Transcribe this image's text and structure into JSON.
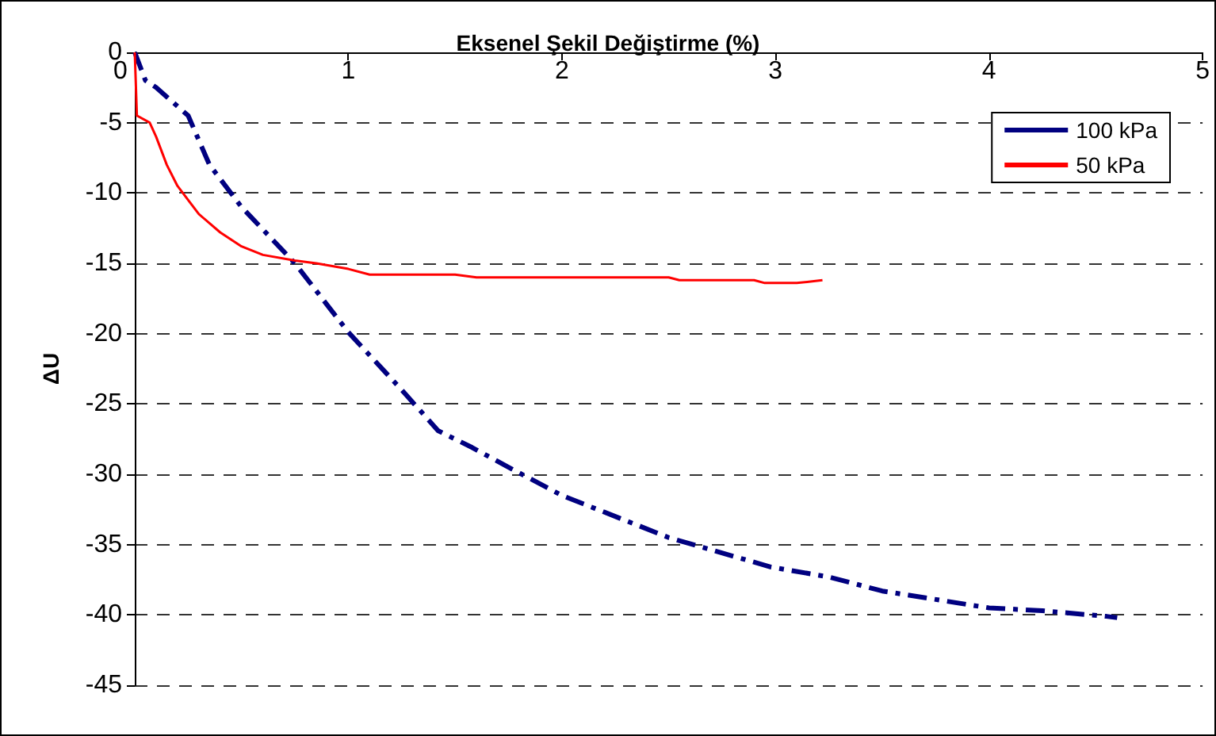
{
  "chart_data": {
    "type": "line",
    "title": "Eksenel Şekil Değiştirme (%)",
    "ylabel": "ΔU",
    "xlim": [
      0,
      5
    ],
    "xticks": [
      0,
      1,
      2,
      3,
      4,
      5
    ],
    "ylim": [
      -45,
      0
    ],
    "yticks": [
      -45,
      -40,
      -35,
      -30,
      -25,
      -20,
      -15,
      -10,
      -5,
      0
    ],
    "grid": "y",
    "legend": "top right",
    "marker": "none",
    "series": [
      {
        "name": "100 kPa",
        "color": "#000080",
        "line_style": "dashed",
        "x": [
          0,
          0.05,
          0.1,
          0.25,
          0.35,
          0.5,
          0.75,
          1,
          1.25,
          1.42,
          1.58,
          1.75,
          2,
          2.5,
          2.98,
          3.25,
          3.5,
          4,
          4.25,
          4.55,
          4.6
        ],
        "values": [
          0,
          -2,
          -2.5,
          -4.5,
          -8,
          -11,
          -15,
          -19.9,
          -24,
          -26.9,
          -28.1,
          -29.5,
          -31.5,
          -34.5,
          -36.6,
          -37.3,
          -38.3,
          -39.5,
          -39.7,
          -40.1,
          -40.2
        ]
      },
      {
        "name": "50 kPa",
        "color": "#ff0000",
        "line_style": "solid",
        "x": [
          0,
          0.01,
          0.07,
          0.1,
          0.15,
          0.2,
          0.3,
          0.4,
          0.5,
          0.6,
          0.75,
          0.85,
          1,
          1.1,
          1.5,
          1.6,
          2.5,
          2.55,
          2.9,
          2.95,
          3.1,
          3.22
        ],
        "values": [
          0,
          -4.5,
          -5,
          -6,
          -8,
          -9.5,
          -11.5,
          -12.8,
          -13.8,
          -14.4,
          -14.8,
          -15,
          -15.4,
          -15.8,
          -15.8,
          -16,
          -16,
          -16.2,
          -16.2,
          -16.4,
          -16.4,
          -16.2
        ]
      }
    ]
  }
}
